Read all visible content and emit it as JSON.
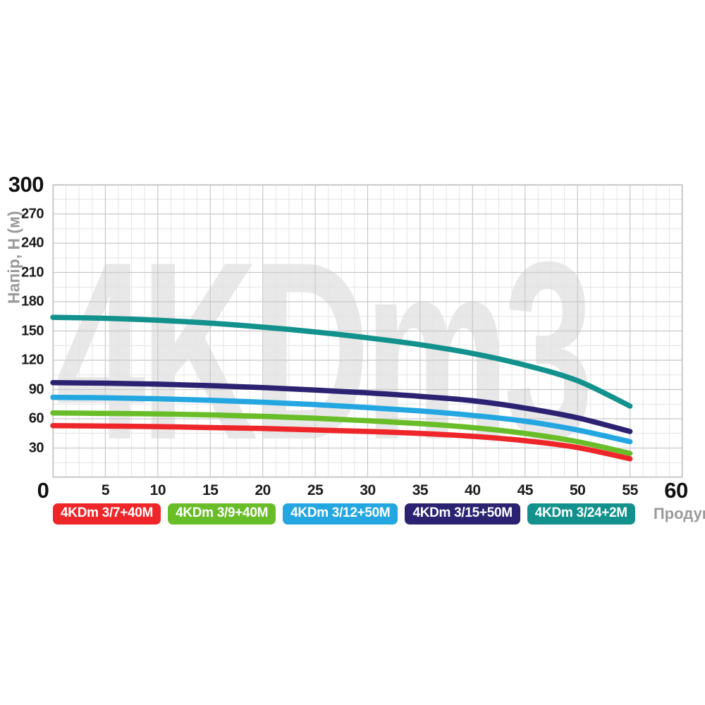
{
  "chart_data": {
    "type": "line",
    "title": "",
    "watermark": "4KDm3",
    "xlabel": "Продуктивність, Q (л/хв)",
    "ylabel": "Напір, H (м)",
    "xlim": [
      0,
      60
    ],
    "ylim": [
      0,
      300
    ],
    "x_ticks": [
      0,
      5,
      10,
      15,
      20,
      25,
      30,
      35,
      40,
      45,
      50,
      55,
      60
    ],
    "y_ticks": [
      30,
      60,
      90,
      120,
      150,
      180,
      210,
      240,
      270,
      300
    ],
    "x_minor_step": 1.25,
    "y_minor_step": 15,
    "grid": true,
    "legend_position": "bottom",
    "grid_minor_color": "#e4e4e4",
    "grid_major_color": "#c8c8c8",
    "border_color": "#c2c2c2",
    "x": [
      0,
      5,
      10,
      15,
      20,
      25,
      30,
      35,
      40,
      45,
      50,
      55
    ],
    "series": [
      {
        "name": "4KDm 3/7+40M",
        "color": "#ee2629",
        "values": [
          53,
          52.5,
          52,
          51,
          50,
          48.5,
          47,
          45,
          42,
          37.5,
          30.5,
          19
        ]
      },
      {
        "name": "4KDm 3/9+40M",
        "color": "#69bd28",
        "values": [
          66,
          65.5,
          65,
          64,
          62.5,
          60.5,
          58,
          55,
          51,
          45,
          36.5,
          24.5
        ]
      },
      {
        "name": "4KDm 3/12+50M",
        "color": "#24a7e0",
        "values": [
          82,
          81.5,
          80.5,
          79,
          77,
          74.5,
          71.5,
          68,
          63.5,
          57.5,
          48.5,
          36.5
        ]
      },
      {
        "name": "4KDm 3/15+50M",
        "color": "#2b2372",
        "values": [
          97,
          96.5,
          95.5,
          94,
          92,
          89.5,
          86.5,
          83,
          78.5,
          71,
          61,
          47
        ]
      },
      {
        "name": "4KDm 3/24+2M",
        "color": "#13918d",
        "values": [
          164,
          163,
          161,
          158,
          154,
          149,
          143,
          136,
          127,
          115,
          99,
          73
        ]
      }
    ]
  }
}
